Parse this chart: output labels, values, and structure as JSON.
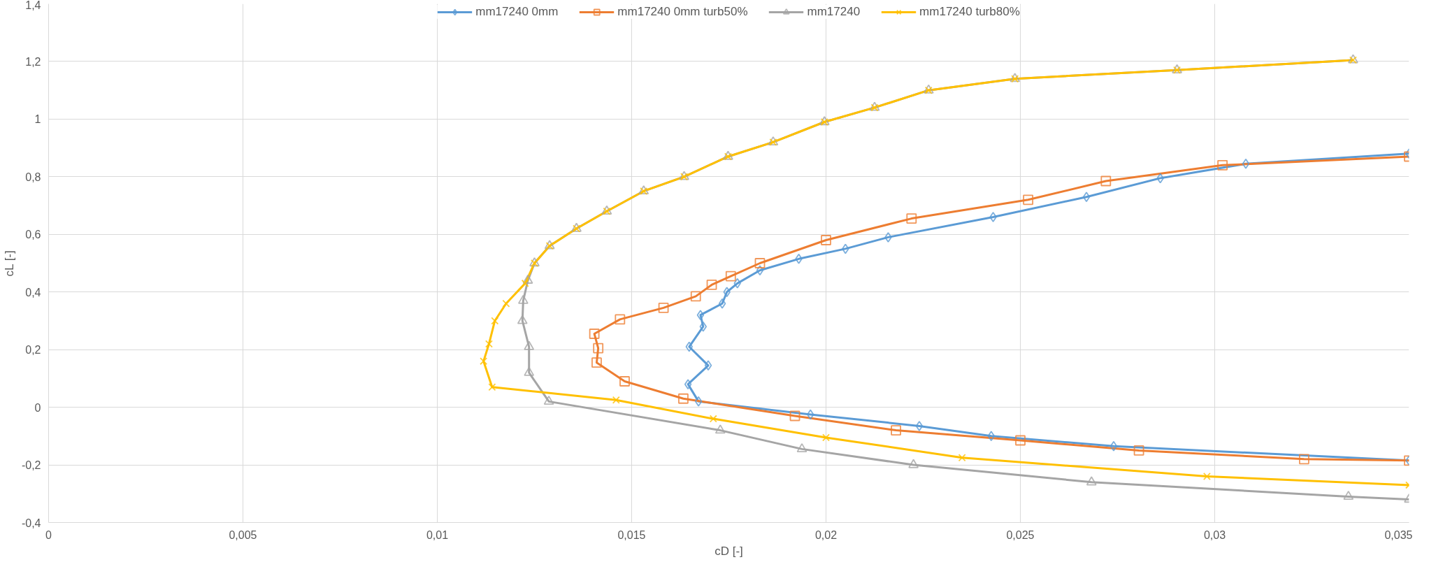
{
  "chart_data": {
    "type": "line",
    "xlabel": "cD [-]",
    "ylabel": "cL [-]",
    "xlim": [
      0,
      0.035
    ],
    "ylim": [
      -0.4,
      1.4
    ],
    "xticks": [
      0,
      {
        "value": 0.005,
        "label": "0,005"
      },
      {
        "value": 0.01,
        "label": "0,01"
      },
      {
        "value": 0.015,
        "label": "0,015"
      },
      {
        "value": 0.02,
        "label": "0,02"
      },
      {
        "value": 0.025,
        "label": "0,025"
      },
      {
        "value": 0.03,
        "label": "0,03"
      },
      {
        "value": 0.035,
        "label": "0,035"
      }
    ],
    "yticks": [
      {
        "value": -0.4,
        "label": "-0,4"
      },
      {
        "value": -0.2,
        "label": "-0,2"
      },
      0,
      {
        "value": 0.2,
        "label": "0,2"
      },
      {
        "value": 0.4,
        "label": "0,4"
      },
      {
        "value": 0.6,
        "label": "0,6"
      },
      {
        "value": 0.8,
        "label": "0,8"
      },
      1,
      {
        "value": 1.2,
        "label": "1,2"
      },
      {
        "value": 1.4,
        "label": "1,4"
      }
    ],
    "grid": true,
    "legend": "top",
    "line_style": "solid",
    "series": [
      {
        "name": "mm17240 0mm",
        "color": "#5b9bd5",
        "marker": "diamond",
        "x": [
          0.035,
          0.0274,
          0.02425,
          0.0224,
          0.0196,
          0.01672,
          0.01645,
          0.01697,
          0.01648,
          0.01684,
          0.01677,
          0.01733,
          0.01745,
          0.01772,
          0.0183,
          0.0193,
          0.0205,
          0.0216,
          0.0243,
          0.0267,
          0.0286,
          0.0308,
          0.035
        ],
        "values": [
          -0.185,
          -0.135,
          -0.1,
          -0.065,
          -0.025,
          0.02,
          0.08,
          0.145,
          0.21,
          0.28,
          0.32,
          0.36,
          0.4,
          0.43,
          0.475,
          0.515,
          0.55,
          0.59,
          0.66,
          0.73,
          0.795,
          0.845,
          0.88
        ]
      },
      {
        "name": "mm17240 0mm turb50%",
        "color": "#ed7d31",
        "marker": "square",
        "x": [
          0.035,
          0.0323,
          0.02805,
          0.025,
          0.0218,
          0.0192,
          0.01633,
          0.01482,
          0.0141,
          0.01414,
          0.01404,
          0.0147,
          0.01582,
          0.01665,
          0.01706,
          0.01755,
          0.0183,
          0.02,
          0.0222,
          0.0252,
          0.0272,
          0.0302,
          0.035
        ],
        "values": [
          -0.185,
          -0.18,
          -0.15,
          -0.115,
          -0.08,
          -0.03,
          0.03,
          0.09,
          0.155,
          0.205,
          0.255,
          0.305,
          0.345,
          0.385,
          0.425,
          0.455,
          0.5,
          0.58,
          0.655,
          0.72,
          0.785,
          0.84,
          0.87
        ]
      },
      {
        "name": "mm17240",
        "color": "#a5a5a5",
        "marker": "triangle",
        "x": [
          0.035,
          0.03344,
          0.02683,
          0.02225,
          0.01938,
          0.01728,
          0.01287,
          0.01236,
          0.01236,
          0.01219,
          0.01221,
          0.01233,
          0.0125,
          0.01289,
          0.01358,
          0.01436,
          0.01531,
          0.01635,
          0.01748,
          0.01864,
          0.01996,
          0.02125,
          0.02264,
          0.02486,
          0.02903,
          0.03356
        ],
        "values": [
          -0.32,
          -0.31,
          -0.26,
          -0.2,
          -0.145,
          -0.08,
          0.02,
          0.12,
          0.21,
          0.3,
          0.37,
          0.44,
          0.5,
          0.56,
          0.62,
          0.68,
          0.75,
          0.8,
          0.87,
          0.92,
          0.99,
          1.04,
          1.1,
          1.14,
          1.17,
          1.205
        ]
      },
      {
        "name": "mm17240 turb80%",
        "color": "#ffc000",
        "marker": "cross",
        "x": [
          0.035,
          0.0298,
          0.0235,
          0.02,
          0.0171,
          0.0146,
          0.01141,
          0.01119,
          0.01133,
          0.01148,
          0.01177,
          0.01226,
          0.0125,
          0.01289,
          0.01358,
          0.01436,
          0.01531,
          0.01635,
          0.01748,
          0.01864,
          0.01996,
          0.02125,
          0.02264,
          0.02486,
          0.02903,
          0.03356
        ],
        "values": [
          -0.27,
          -0.24,
          -0.175,
          -0.105,
          -0.04,
          0.025,
          0.07,
          0.16,
          0.22,
          0.3,
          0.36,
          0.43,
          0.5,
          0.56,
          0.62,
          0.68,
          0.75,
          0.8,
          0.87,
          0.92,
          0.99,
          1.04,
          1.1,
          1.14,
          1.17,
          1.205
        ]
      }
    ]
  }
}
